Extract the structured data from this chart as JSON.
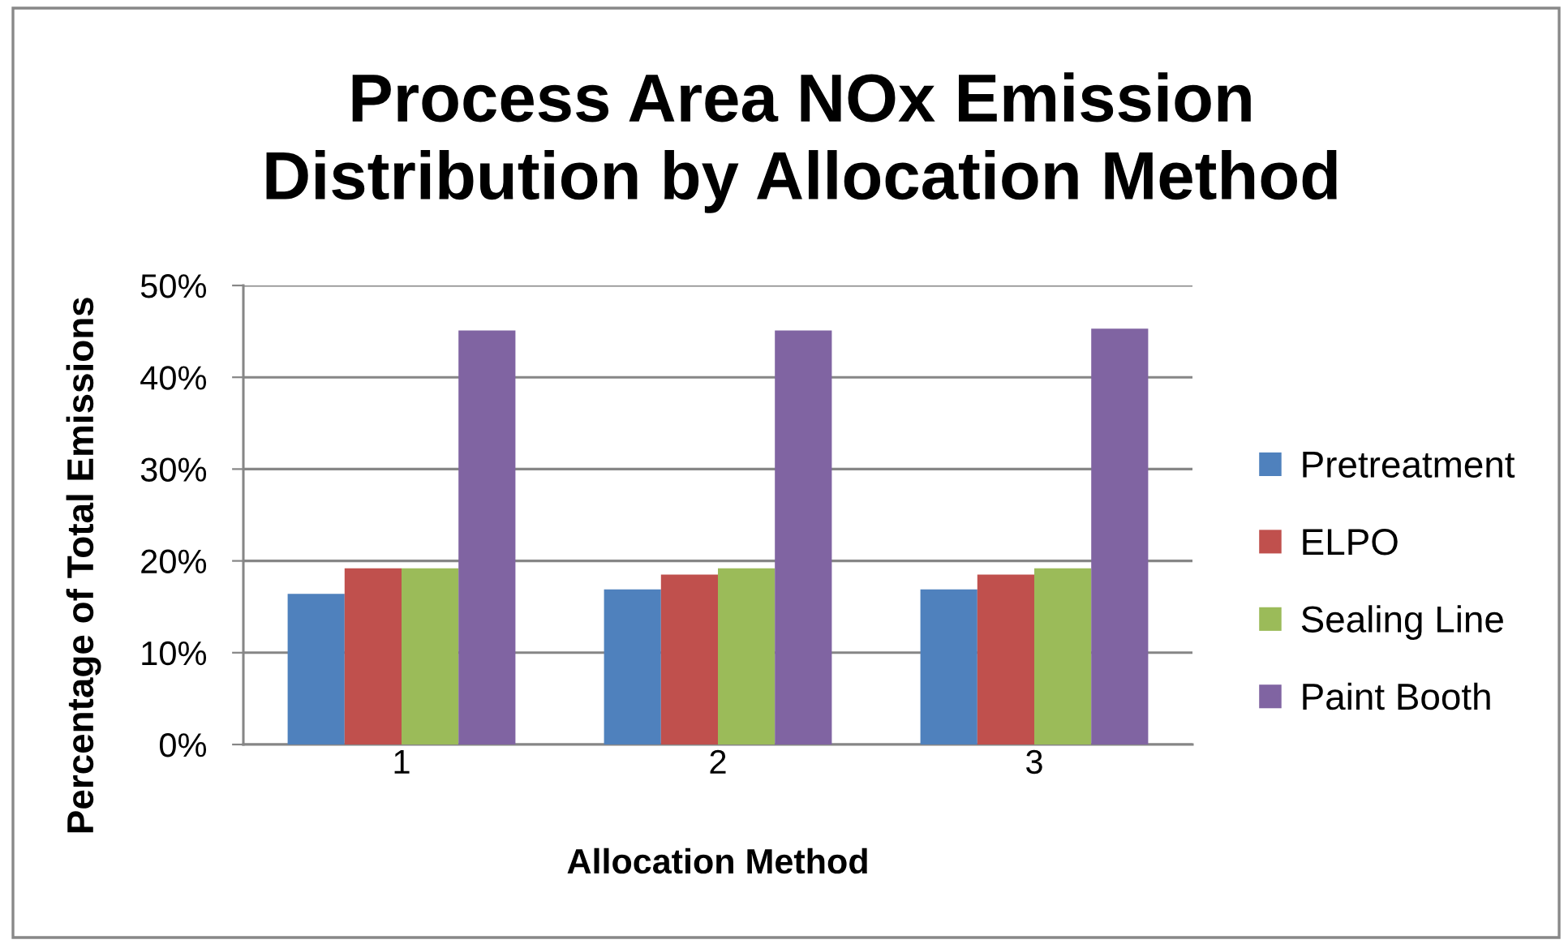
{
  "chart_data": {
    "type": "bar",
    "title": "Process Area NOx Emission\nDistribution by Allocation Method",
    "xlabel": "Allocation Method",
    "ylabel": "Percentage of Total Emissions",
    "categories": [
      "1",
      "2",
      "3"
    ],
    "series": [
      {
        "name": "Pretreatment",
        "color": "#4f81bd",
        "values": [
          16.4,
          16.9,
          16.9
        ]
      },
      {
        "name": "ELPO",
        "color": "#c0504d",
        "values": [
          19.2,
          18.5,
          18.5
        ]
      },
      {
        "name": "Sealing Line",
        "color": "#9bbb59",
        "values": [
          19.2,
          19.2,
          19.2
        ]
      },
      {
        "name": "Paint Booth",
        "color": "#8064a2",
        "values": [
          45.1,
          45.1,
          45.3
        ]
      }
    ],
    "ylim": [
      0,
      50
    ],
    "yticks": [
      {
        "value": 0,
        "label": "0%"
      },
      {
        "value": 10,
        "label": "10%"
      },
      {
        "value": 20,
        "label": "20%"
      },
      {
        "value": 30,
        "label": "30%"
      },
      {
        "value": 40,
        "label": "40%"
      },
      {
        "value": 50,
        "label": "50%"
      }
    ],
    "grid": "y",
    "legend": "right"
  }
}
